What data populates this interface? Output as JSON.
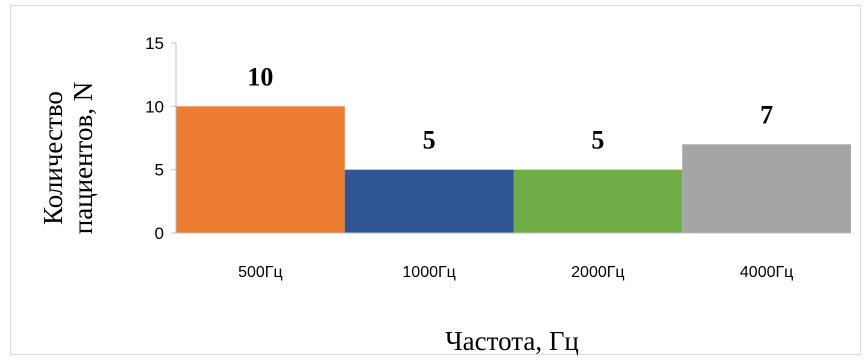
{
  "chart_data": {
    "type": "bar",
    "categories": [
      "500Гц",
      "1000Гц",
      "2000Гц",
      "4000Гц"
    ],
    "values": [
      10,
      5,
      5,
      7
    ],
    "data_labels": [
      "10",
      "5",
      "5",
      "7"
    ],
    "colors": [
      "#ED7D31",
      "#2F5597",
      "#70AD47",
      "#A5A5A5"
    ],
    "xlabel": "Частота, Гц",
    "ylabel_line1": "Количество",
    "ylabel_line2": "пациентов, N",
    "ylim": [
      0,
      15
    ],
    "yticks": [
      0,
      5,
      10,
      15
    ],
    "ytick_labels": [
      "0",
      "5",
      "10",
      "15"
    ],
    "grid": false,
    "gap_width": 0
  }
}
